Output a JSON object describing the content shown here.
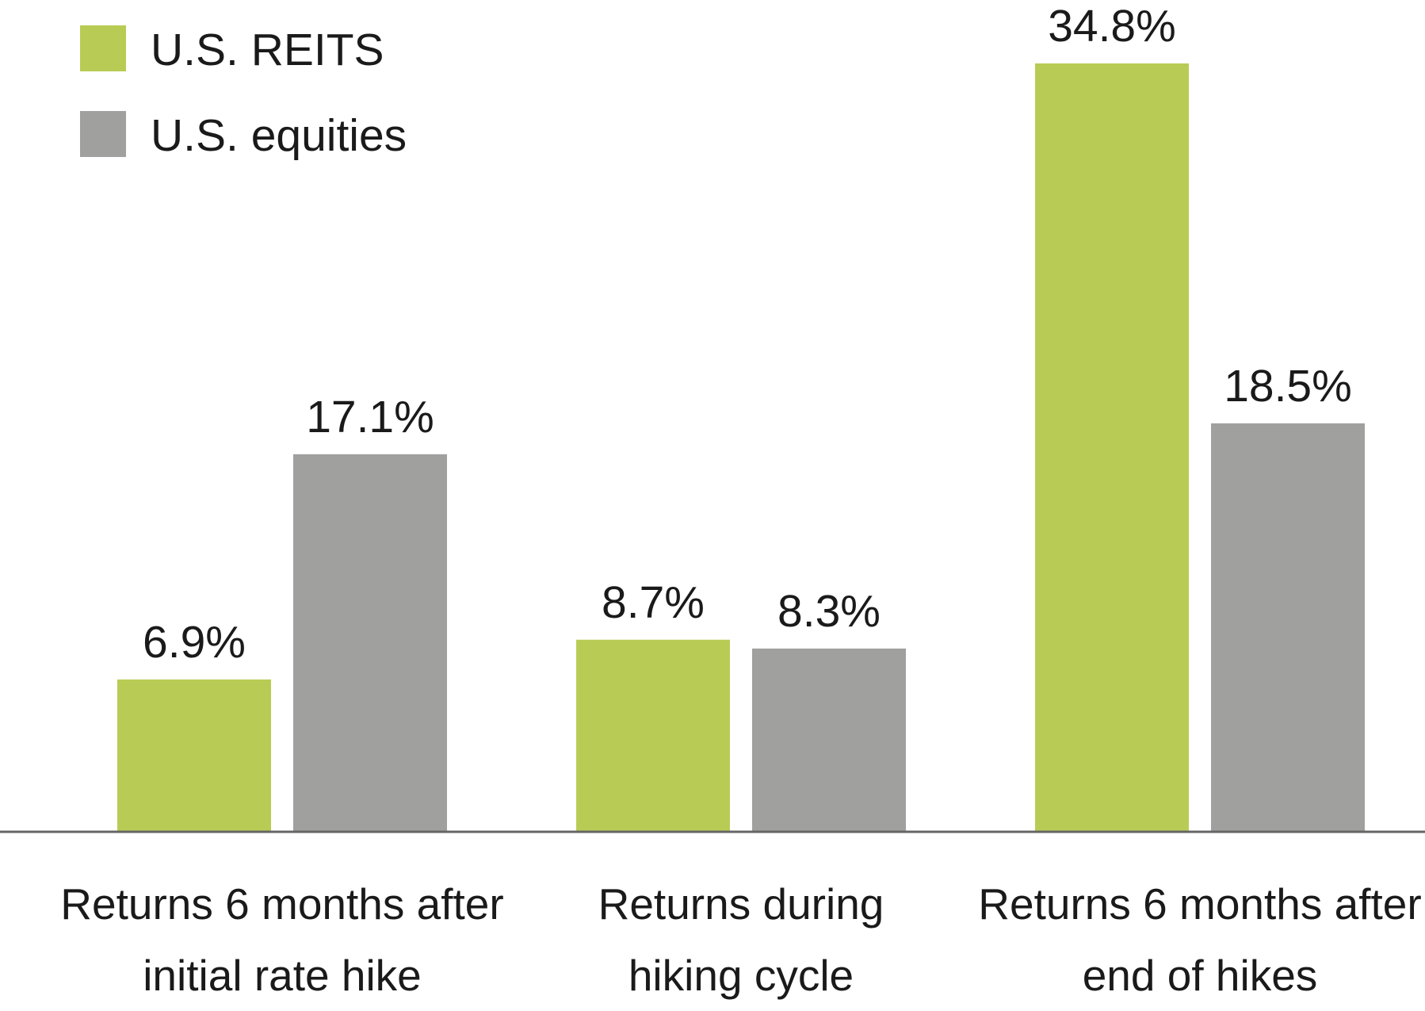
{
  "chart_data": {
    "type": "bar",
    "categories": [
      "Returns 6 months after initial rate hike",
      "Returns during hiking cycle",
      "Returns 6 months after end of hikes"
    ],
    "series": [
      {
        "name": "U.S. REITS",
        "color": "#b8cc55",
        "values": [
          6.9,
          8.7,
          34.8
        ],
        "value_labels": [
          "6.9%",
          "8.7%",
          "34.8%"
        ]
      },
      {
        "name": "U.S. equities",
        "color": "#a0a09f",
        "values": [
          17.1,
          8.3,
          18.5
        ],
        "value_labels": [
          "17.1%",
          "8.3%",
          "18.5%"
        ]
      }
    ],
    "legend": "top-left"
  }
}
